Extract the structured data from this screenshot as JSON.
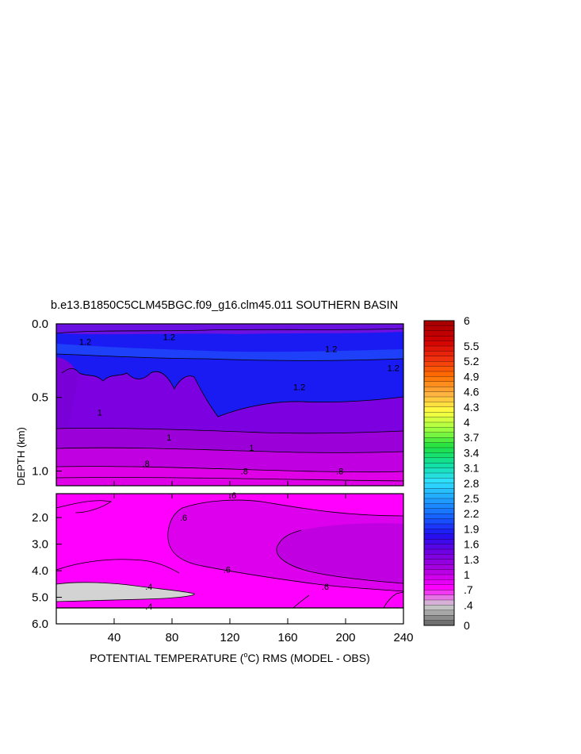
{
  "chart_data": {
    "type": "heatmap",
    "title": "b.e13.B1850C5CLM45BGC.f09_g16.clm45.011 SOUTHERN BASIN",
    "xlabel": "POTENTIAL TEMPERATURE (°C) RMS (MODEL - OBS)",
    "xlabel_parts": {
      "pre": "POTENTIAL TEMPERATURE (",
      "sup": "o",
      "post": "C) RMS (MODEL - OBS)"
    },
    "ylabel": "DEPTH (km)",
    "x_ticks": [
      "40",
      "80",
      "120",
      "160",
      "200",
      "240"
    ],
    "x_tick_values": [
      40,
      80,
      120,
      160,
      200,
      240
    ],
    "xlim": [
      0,
      240
    ],
    "upper_panel": {
      "ylim": [
        0.0,
        1.1
      ],
      "y_ticks": [
        "0.0",
        "0.5",
        "1.0"
      ],
      "y_tick_values": [
        0.0,
        0.5,
        1.0
      ]
    },
    "lower_panel": {
      "ylim": [
        1.1,
        6.0
      ],
      "y_ticks": [
        "2.0",
        "3.0",
        "4.0",
        "5.0",
        "6.0"
      ],
      "y_tick_values": [
        2.0,
        3.0,
        4.0,
        5.0,
        6.0
      ]
    },
    "contour_labels": [
      {
        "text": "1.2",
        "x": 78,
        "depth": 0.09
      },
      {
        "text": "1.2",
        "x": 20,
        "depth": 0.12
      },
      {
        "text": "1.2",
        "x": 190,
        "depth": 0.17
      },
      {
        "text": "1.2",
        "x": 233,
        "depth": 0.3
      },
      {
        "text": "1.2",
        "x": 168,
        "depth": 0.43
      },
      {
        "text": "1",
        "x": 30,
        "depth": 0.6
      },
      {
        "text": "1",
        "x": 78,
        "depth": 0.77
      },
      {
        "text": "1",
        "x": 135,
        "depth": 0.84
      },
      {
        "text": ".8",
        "x": 62,
        "depth": 0.95
      },
      {
        "text": ".8",
        "x": 130,
        "depth": 1.0
      },
      {
        "text": ".8",
        "x": 196,
        "depth": 1.0
      },
      {
        "text": ".6",
        "x": 122,
        "depth": 1.16
      },
      {
        "text": ".6",
        "x": 88,
        "depth": 2.0
      },
      {
        "text": ".6",
        "x": 118,
        "depth": 3.95
      },
      {
        "text": ".6",
        "x": 186,
        "depth": 4.6
      },
      {
        "text": ".4",
        "x": 64,
        "depth": 4.6
      },
      {
        "text": ".4",
        "x": 64,
        "depth": 5.35
      }
    ],
    "colorbar": {
      "labels": [
        "6",
        "5.5",
        "5.2",
        "4.9",
        "4.6",
        "4.3",
        "4",
        "3.7",
        "3.4",
        "3.1",
        "2.8",
        "2.5",
        "2.2",
        "1.9",
        "1.6",
        "1.3",
        "1",
        ".7",
        ".4",
        "0"
      ],
      "label_values": [
        6,
        5.5,
        5.2,
        4.9,
        4.6,
        4.3,
        4,
        3.7,
        3.4,
        3.1,
        2.8,
        2.5,
        2.2,
        1.9,
        1.6,
        1.3,
        1,
        0.7,
        0.4,
        0
      ],
      "color_stops": [
        "#a80000",
        "#d00000",
        "#f03010",
        "#ff7000",
        "#ffb040",
        "#ffff40",
        "#a0ff40",
        "#20e040",
        "#10e0a0",
        "#30e0ff",
        "#20a0ff",
        "#1560ff",
        "#2010f0",
        "#7000e0",
        "#b000e0",
        "#ff00ff",
        "#d0d0d0",
        "#707070"
      ]
    }
  }
}
